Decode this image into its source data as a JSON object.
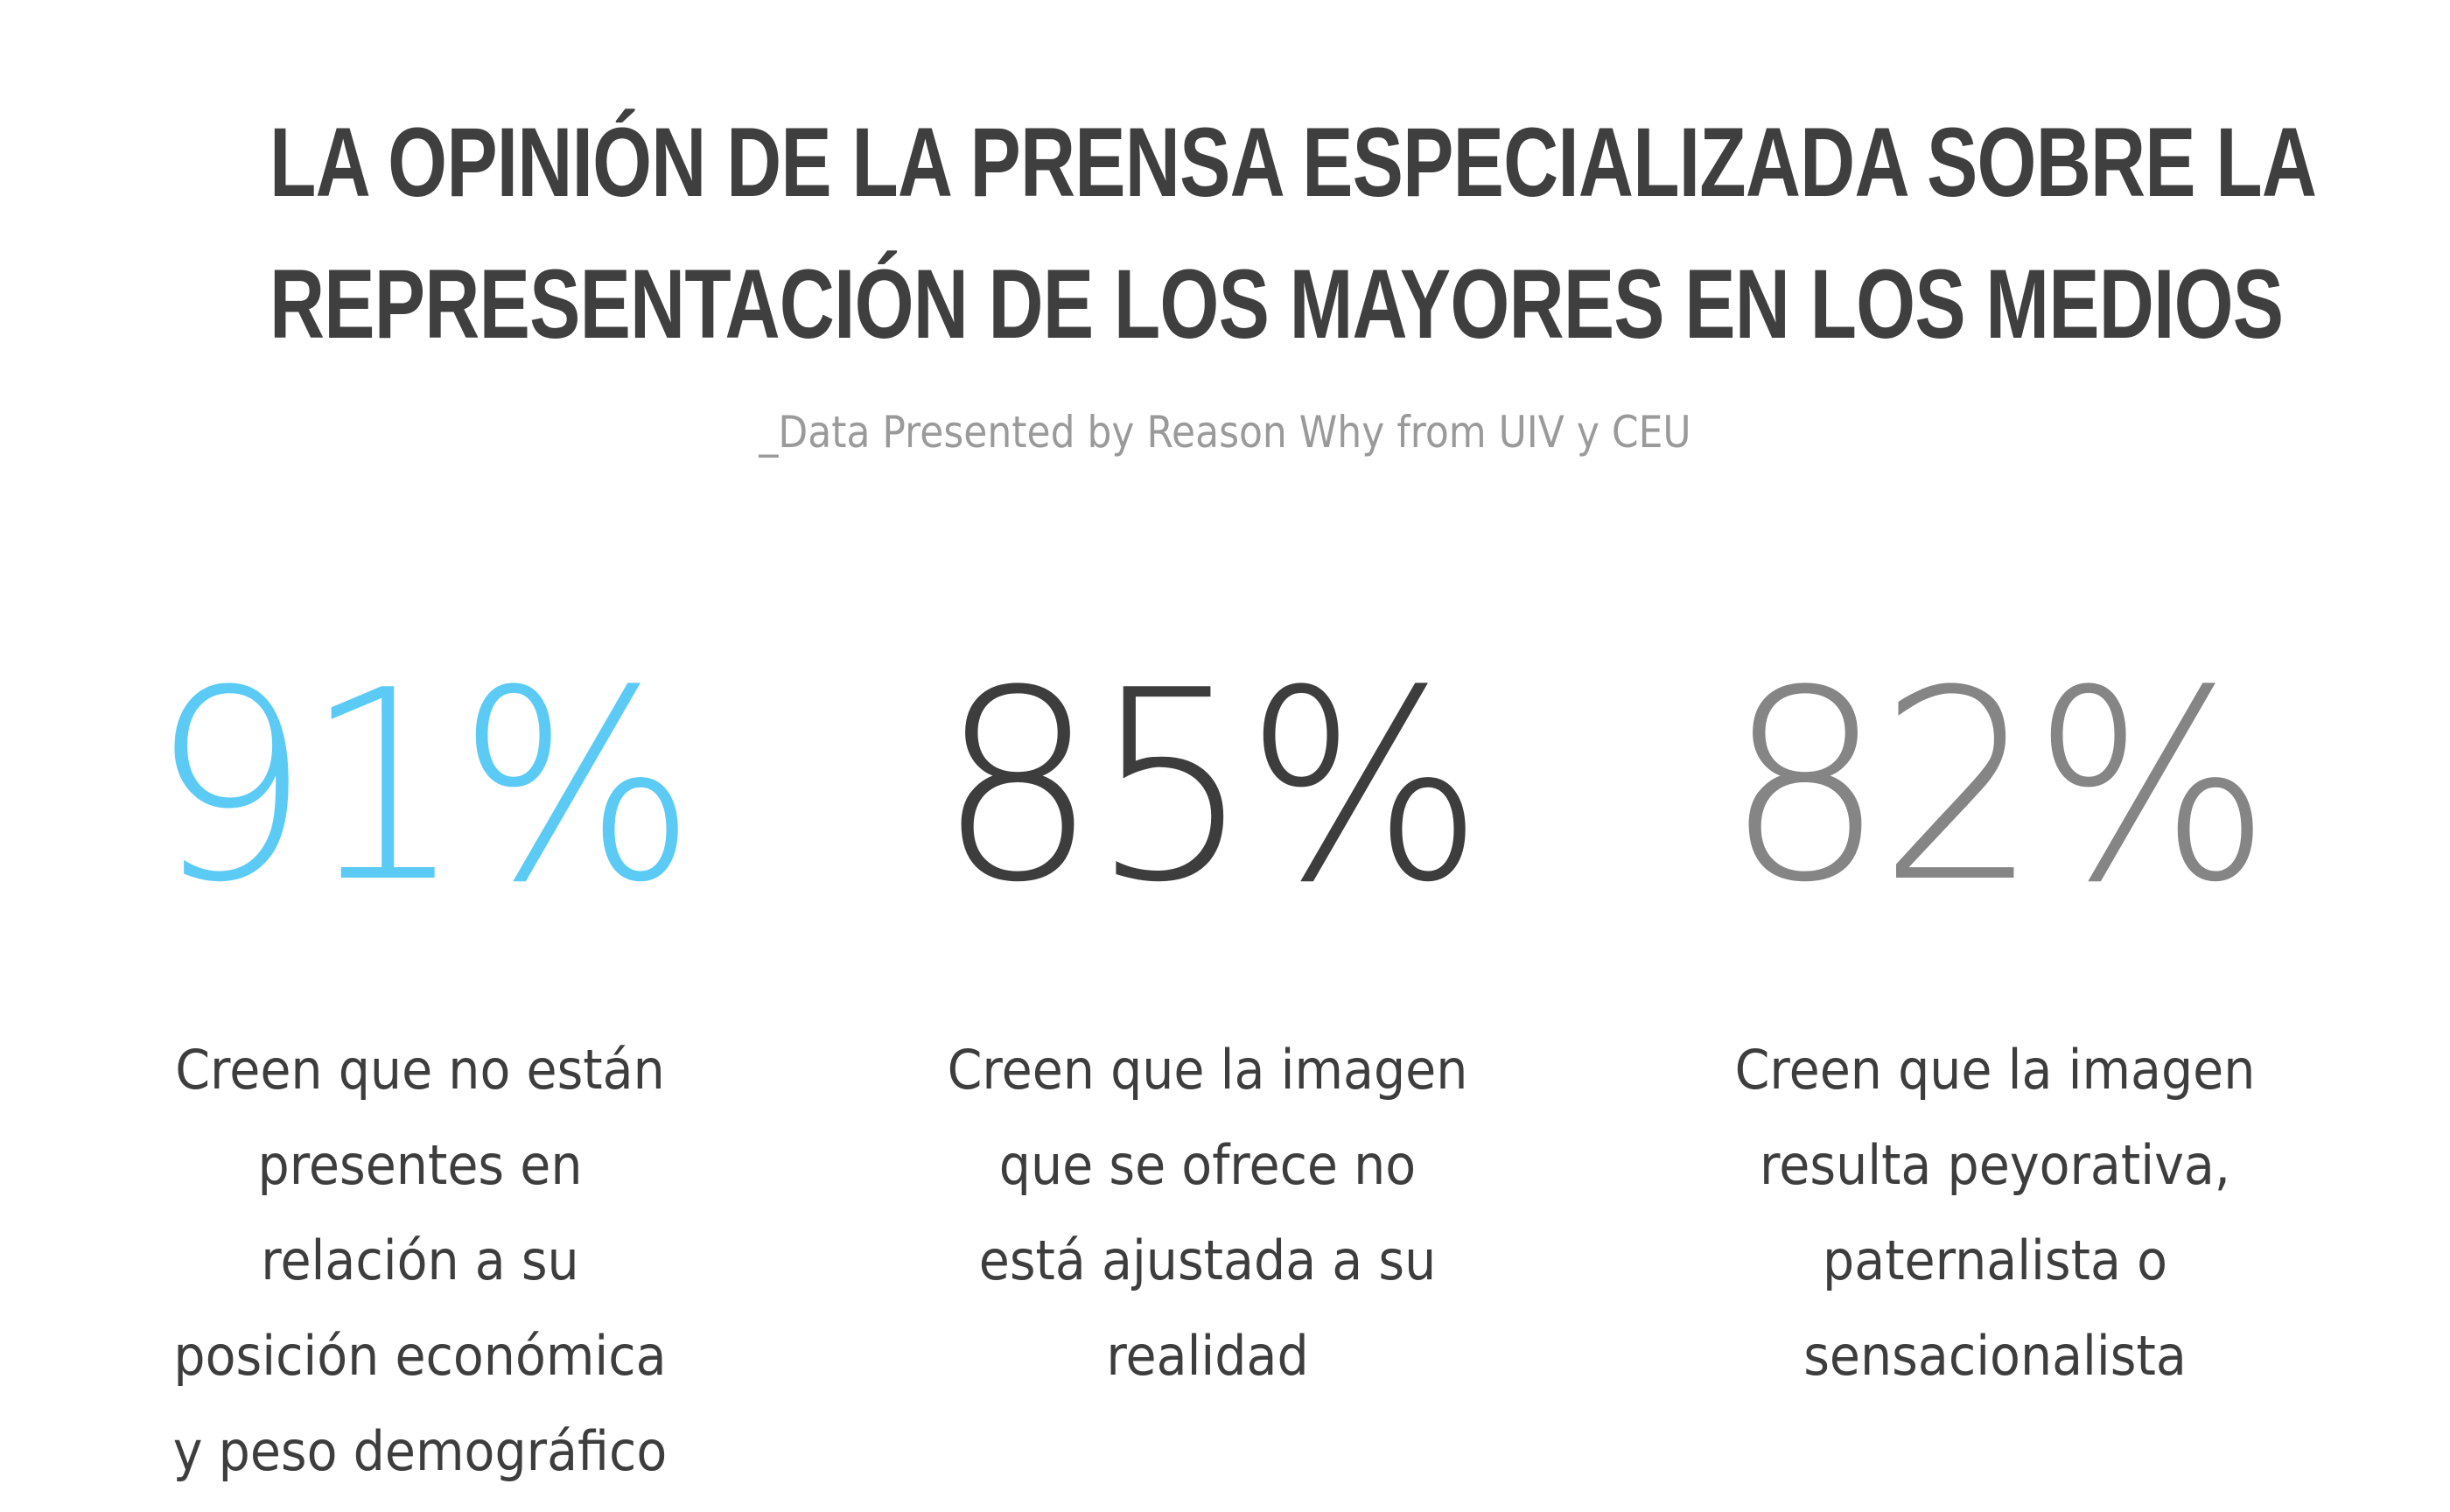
{
  "header": {
    "title_lines": [
      "LA OPINIÓN DE LA PRENSA ESPECIALIZADA SOBRE LA",
      "REPRESENTACIÓN DE LOS MAYORES EN LOS MEDIOS"
    ],
    "subtitle": "_Data Presented by Reason Why from UIV y CEU"
  },
  "stats": [
    {
      "value": "91%",
      "color": "#5bcbf5",
      "lines": [
        "Creen que no están",
        "presentes en",
        "relación a su",
        "posición económica",
        "y peso demográfico"
      ]
    },
    {
      "value": "85%",
      "color": "#3d3d3d",
      "lines": [
        "Creen que la imagen",
        "que se ofrece no",
        "está ajustada a su",
        "realidad"
      ]
    },
    {
      "value": "82%",
      "color": "#858585",
      "lines": [
        "Creen que la imagen",
        "resulta peyorativa,",
        "paternalista o",
        "sensacionalista"
      ]
    }
  ]
}
